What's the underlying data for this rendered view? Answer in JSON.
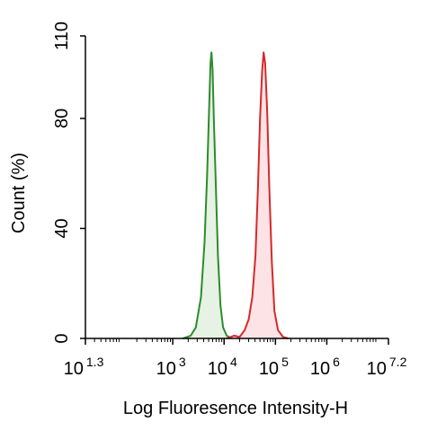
{
  "chart_data": {
    "type": "area",
    "xlabel": "Log Fluoresence Intensity-H",
    "ylabel": "Count  (%)",
    "x_scale": "log",
    "xlim_exponent": [
      1.3,
      7.2
    ],
    "ylim": [
      0,
      110
    ],
    "x_ticks": [
      {
        "base": "10",
        "exp": "1.3",
        "value": 1.3
      },
      {
        "base": "10",
        "exp": "3",
        "value": 3
      },
      {
        "base": "10",
        "exp": "4",
        "value": 4
      },
      {
        "base": "10",
        "exp": "5",
        "value": 5
      },
      {
        "base": "10",
        "exp": "6",
        "value": 6
      },
      {
        "base": "10",
        "exp": "7.2",
        "value": 7.2
      }
    ],
    "y_ticks": [
      {
        "label": "0",
        "value": 0
      },
      {
        "label": "40",
        "value": 40
      },
      {
        "label": "80",
        "value": 80
      },
      {
        "label": "110",
        "value": 110
      }
    ],
    "grid": false,
    "legend": "none",
    "series": [
      {
        "color": "#2e8b2e",
        "fill": "#e6f2e3",
        "points": [
          [
            3.2,
            0
          ],
          [
            3.35,
            1
          ],
          [
            3.45,
            4
          ],
          [
            3.55,
            15
          ],
          [
            3.62,
            35
          ],
          [
            3.67,
            60
          ],
          [
            3.71,
            85
          ],
          [
            3.735,
            100
          ],
          [
            3.755,
            104
          ],
          [
            3.775,
            98
          ],
          [
            3.8,
            80
          ],
          [
            3.84,
            55
          ],
          [
            3.88,
            30
          ],
          [
            3.93,
            12
          ],
          [
            3.98,
            4
          ],
          [
            4.05,
            1
          ],
          [
            4.15,
            0
          ]
        ]
      },
      {
        "color": "#d42a2a",
        "fill": "#fde3e6",
        "points": [
          [
            4.05,
            0
          ],
          [
            4.2,
            1
          ],
          [
            4.3,
            0.5
          ],
          [
            4.4,
            3
          ],
          [
            4.48,
            7
          ],
          [
            4.55,
            15
          ],
          [
            4.61,
            30
          ],
          [
            4.66,
            55
          ],
          [
            4.7,
            80
          ],
          [
            4.74,
            97
          ],
          [
            4.77,
            104
          ],
          [
            4.8,
            100
          ],
          [
            4.84,
            82
          ],
          [
            4.88,
            55
          ],
          [
            4.93,
            28
          ],
          [
            4.98,
            10
          ],
          [
            5.05,
            3
          ],
          [
            5.15,
            0.5
          ],
          [
            5.25,
            0
          ]
        ]
      }
    ]
  }
}
